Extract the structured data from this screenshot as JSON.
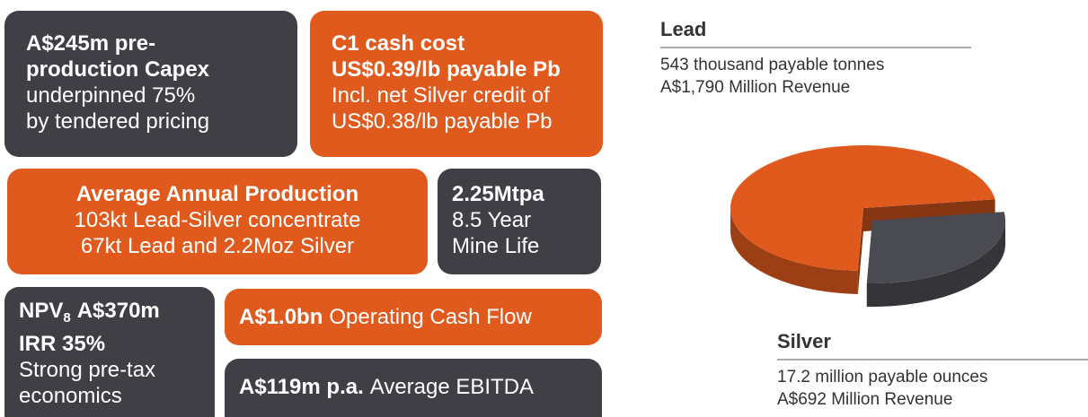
{
  "boxes": [
    {
      "heading": [
        "A$245m pre-",
        "production Capex"
      ],
      "body": [
        "underpinned 75%",
        "by tendered pricing"
      ]
    },
    {
      "heading": [
        "C1 cash cost",
        "US$0.39/lb payable Pb"
      ],
      "body": [
        "Incl. net Silver credit of",
        "US$0.38/lb payable Pb"
      ]
    },
    {
      "heading": [
        "Average Annual Production"
      ],
      "body": [
        "103kt Lead-Silver concentrate",
        "67kt Lead and 2.2Moz Silver"
      ]
    },
    {
      "heading": [
        "2.25Mtpa"
      ],
      "body": [
        "8.5 Year",
        "Mine Life"
      ]
    },
    {
      "heading": [
        {
          "main": "NPV",
          "sub": "8",
          "after": "A$370m"
        },
        "IRR 35%"
      ],
      "body": [
        "Strong pre-tax",
        "economics"
      ]
    },
    {
      "bold": "A$1.0bn",
      "text": "Operating Cash Flow"
    },
    {
      "bold": "A$119m p.a.",
      "text": "Average EBITDA"
    }
  ],
  "chart_data": {
    "type": "pie",
    "categories": [
      "Lead",
      "Silver"
    ],
    "details": [
      "543 thousand payable tonnes",
      "17.2 million payable ounces"
    ],
    "values": [
      1790,
      692
    ],
    "value_labels": [
      "A$1,790 Million Revenue",
      "A$692 Million Revenue"
    ],
    "colors": [
      "#e05a1e",
      "#4a4a52"
    ]
  }
}
